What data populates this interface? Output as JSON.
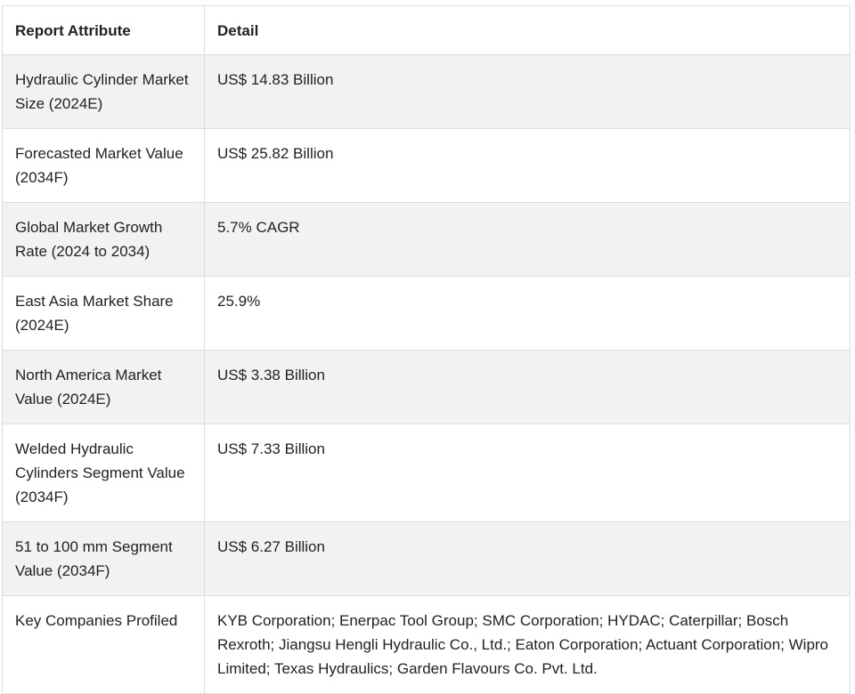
{
  "table": {
    "headers": [
      "Report Attribute",
      "Detail"
    ],
    "rows": [
      {
        "attribute": "Hydraulic Cylinder Market Size (2024E)",
        "detail": "US$ 14.83 Billion"
      },
      {
        "attribute": "Forecasted Market Value (2034F)",
        "detail": "US$ 25.82 Billion"
      },
      {
        "attribute": "Global Market Growth Rate (2024 to 2034)",
        "detail": "5.7% CAGR"
      },
      {
        "attribute": "East Asia Market Share (2024E)",
        "detail": "25.9%"
      },
      {
        "attribute": "North America Market Value (2024E)",
        "detail": "US$ 3.38 Billion"
      },
      {
        "attribute": "Welded Hydraulic Cylinders Segment Value (2034F)",
        "detail": "US$ 7.33 Billion"
      },
      {
        "attribute": "51 to 100 mm Segment Value (2034F)",
        "detail": "US$ 6.27 Billion"
      },
      {
        "attribute": "Key Companies Profiled",
        "detail": "KYB Corporation; Enerpac Tool Group; SMC Corporation; HYDAC; Caterpillar; Bosch Rexroth; Jiangsu Hengli Hydraulic Co., Ltd.; Eaton Corporation; Actuant Corporation; Wipro Limited; Texas Hydraulics; Garden Flavours Co. Pvt. Ltd."
      }
    ]
  }
}
